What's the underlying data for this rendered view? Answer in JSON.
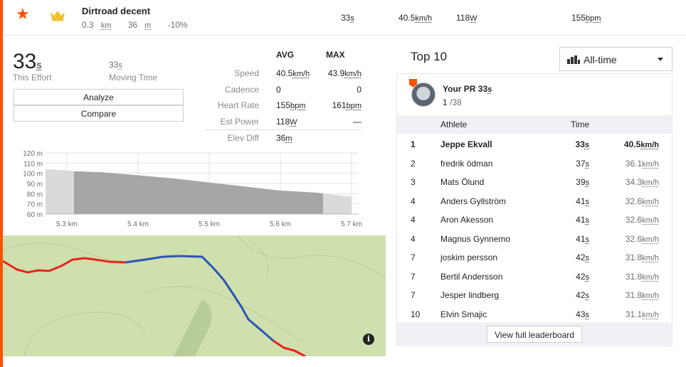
{
  "segment": {
    "name": "Dirtroad decent",
    "distance": "0.3",
    "distance_unit": "km",
    "elev": "36",
    "elev_unit": "m",
    "grade": "-10%",
    "time": "33",
    "time_unit": "s",
    "speed": "40.5",
    "speed_unit": "km/h",
    "power": "118",
    "power_unit": "W",
    "hr": "155",
    "hr_unit": "bpm"
  },
  "icons": {
    "star": "star-icon",
    "crown": "crown-icon",
    "info": "info-icon",
    "bars": "bar-chart-icon",
    "caret": "caret-down-icon"
  },
  "colors": {
    "accent": "#fc5200",
    "crown": "#f2c12e",
    "route_red": "#e8231d",
    "route_blue": "#2a55b4",
    "map_bg": "#cfdfae"
  },
  "effort": {
    "time": "33",
    "time_unit": "s",
    "time_label": "This Effort",
    "moving": "33",
    "moving_unit": "s",
    "moving_label": "Moving Time",
    "analyze_label": "Analyze",
    "compare_label": "Compare"
  },
  "stats": {
    "avg_header": "AVG",
    "max_header": "MAX",
    "rows": [
      {
        "label": "Speed",
        "avg": "40.5",
        "avg_unit": "km/h",
        "max": "43.9",
        "max_unit": "km/h"
      },
      {
        "label": "Cadence",
        "avg": "0",
        "avg_unit": "",
        "max": "0",
        "max_unit": ""
      },
      {
        "label": "Heart Rate",
        "avg": "155",
        "avg_unit": "bpm",
        "max": "161",
        "max_unit": "bpm"
      },
      {
        "label": "Est Power",
        "avg": "118",
        "avg_unit": "W",
        "max": "—",
        "max_unit": ""
      },
      {
        "label": "Elev Diff",
        "avg": "36",
        "avg_unit": "m",
        "max": "",
        "max_unit": ""
      }
    ]
  },
  "chart_data": {
    "type": "area",
    "x": [
      5.27,
      5.3,
      5.31,
      5.35,
      5.4,
      5.45,
      5.5,
      5.55,
      5.6,
      5.65,
      5.7
    ],
    "y": [
      104,
      103,
      102,
      101,
      98,
      95,
      91,
      87,
      83,
      81,
      77
    ],
    "highlight_range": [
      5.31,
      5.66
    ],
    "xlim": [
      5.27,
      5.71
    ],
    "ylim": [
      60,
      120
    ],
    "x_ticks": [
      "5.3 km",
      "5.4 km",
      "5.5 km",
      "5.6 km",
      "5.7 km"
    ],
    "x_tick_values": [
      5.3,
      5.4,
      5.5,
      5.6,
      5.7
    ],
    "y_ticks": [
      "120 m",
      "110 m",
      "100 m",
      "90 m",
      "80 m",
      "70 m",
      "60 m"
    ],
    "y_tick_values": [
      120,
      110,
      100,
      90,
      80,
      70,
      60
    ],
    "grid": true
  },
  "leaderboard": {
    "title": "Top 10",
    "filter": "All-time",
    "pr": {
      "label": "Your PR",
      "time": "33",
      "time_unit": "s",
      "rank": "1",
      "total": "/38"
    },
    "columns": {
      "athlete": "Athlete",
      "time": "Time"
    },
    "rows": [
      {
        "rank": "1",
        "name": "Jeppe Ekvall",
        "time": "33",
        "speed": "40.5"
      },
      {
        "rank": "2",
        "name": "fredrik ödman",
        "time": "37",
        "speed": "36.1"
      },
      {
        "rank": "3",
        "name": "Mats Ölund",
        "time": "39",
        "speed": "34.3"
      },
      {
        "rank": "4",
        "name": "Anders Gyllström",
        "time": "41",
        "speed": "32.6"
      },
      {
        "rank": "4",
        "name": "Aron Akesson",
        "time": "41",
        "speed": "32.6"
      },
      {
        "rank": "4",
        "name": "Magnus Gynnemo",
        "time": "41",
        "speed": "32.6"
      },
      {
        "rank": "7",
        "name": "joskim persson",
        "time": "42",
        "speed": "31.8"
      },
      {
        "rank": "7",
        "name": "Bertil Andersson",
        "time": "42",
        "speed": "31.8"
      },
      {
        "rank": "7",
        "name": "Jesper lindberg",
        "time": "42",
        "speed": "31.8"
      },
      {
        "rank": "10",
        "name": "Elvin Smajic",
        "time": "43",
        "speed": "31.1"
      }
    ],
    "time_unit": "s",
    "speed_unit": "km/h",
    "view_full_label": "View full leaderboard"
  }
}
